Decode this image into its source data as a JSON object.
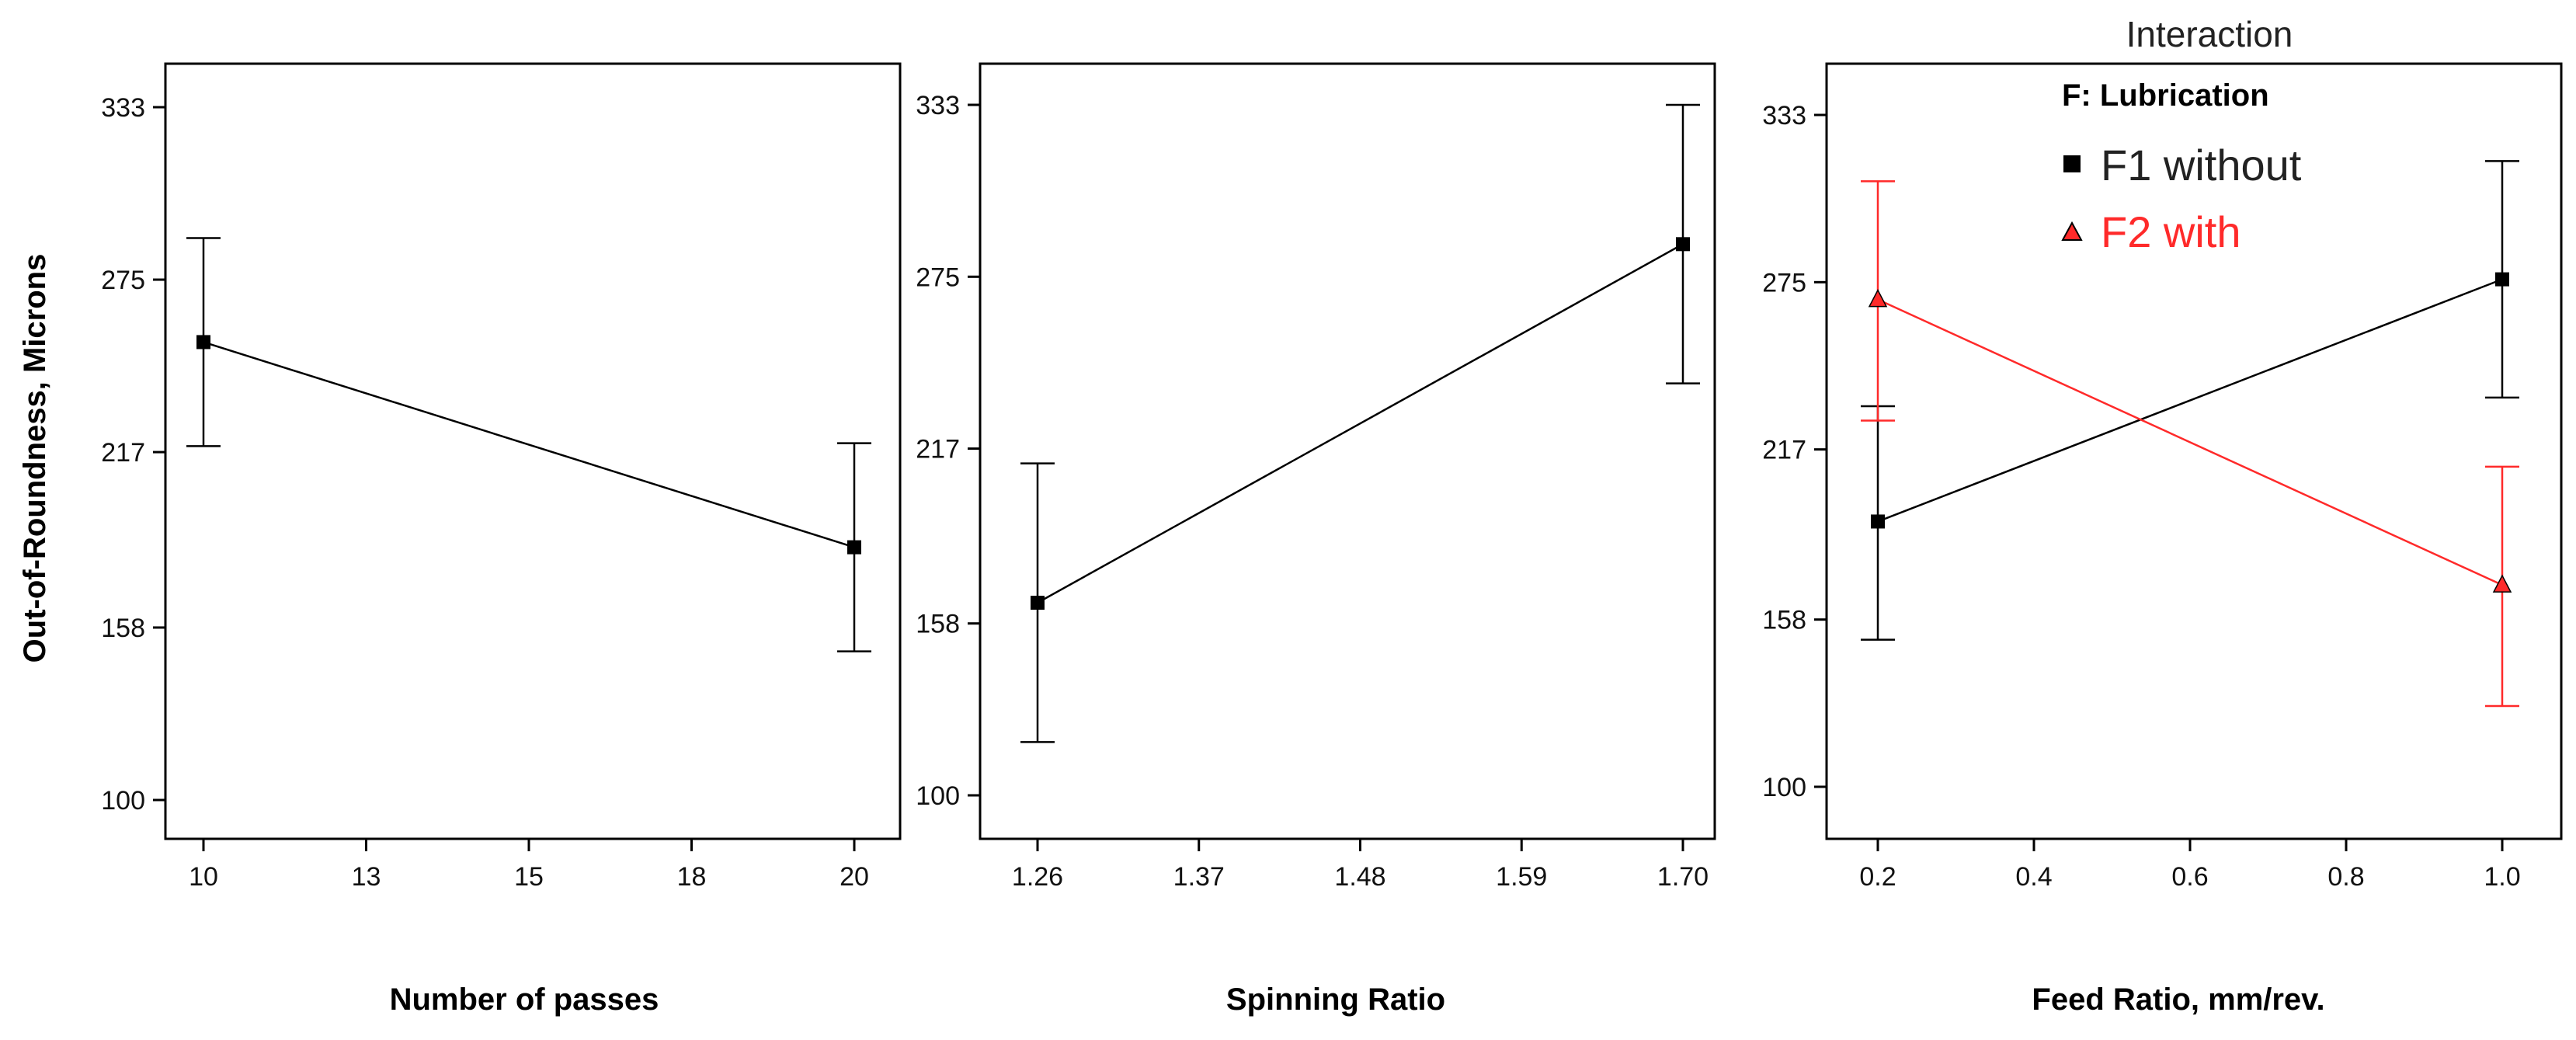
{
  "chart_data": [
    {
      "type": "line",
      "xlabel": "Number of passes",
      "ylabel": "Out-of-Roundness, Microns",
      "x_ticks": [
        "10",
        "13",
        "15",
        "18",
        "20"
      ],
      "xlim": [
        10,
        20
      ],
      "y_ticks": [
        "100",
        "158",
        "217",
        "275",
        "333"
      ],
      "ylim": [
        100,
        333
      ],
      "series": [
        {
          "color": "#000000",
          "marker": "square",
          "points": [
            {
              "x": 10,
              "y": 254,
              "lo": 219,
              "hi": 289
            },
            {
              "x": 20,
              "y": 185,
              "lo": 150,
              "hi": 220
            }
          ]
        }
      ]
    },
    {
      "type": "line",
      "xlabel": "Spinning Ratio",
      "y_ticks": [
        "100",
        "158",
        "217",
        "275",
        "333"
      ],
      "ylim": [
        100,
        333
      ],
      "x_ticks": [
        "1.26",
        "1.37",
        "1.48",
        "1.59",
        "1.70"
      ],
      "xlim": [
        1.26,
        1.7
      ],
      "series": [
        {
          "color": "#000000",
          "marker": "square",
          "points": [
            {
              "x": 1.26,
              "y": 165,
              "lo": 118,
              "hi": 212
            },
            {
              "x": 1.7,
              "y": 286,
              "lo": 239,
              "hi": 333
            }
          ]
        }
      ]
    },
    {
      "type": "line",
      "title": "Interaction",
      "xlabel": "Feed Ratio, mm/rev.",
      "y_ticks": [
        "100",
        "158",
        "217",
        "275",
        "333"
      ],
      "ylim": [
        100,
        333
      ],
      "x_ticks": [
        "0.2",
        "0.4",
        "0.6",
        "0.8",
        "1.0"
      ],
      "xlim": [
        0.2,
        1.0
      ],
      "legend": {
        "title": "F: Lubrication",
        "placement": "top-right"
      },
      "series": [
        {
          "name": "F1 without",
          "color": "#000000",
          "marker": "square",
          "points": [
            {
              "x": 0.2,
              "y": 192,
              "lo": 151,
              "hi": 232
            },
            {
              "x": 1.0,
              "y": 276,
              "lo": 235,
              "hi": 317
            }
          ]
        },
        {
          "name": "F2 with",
          "color": "#ff2a2a",
          "marker": "triangle",
          "points": [
            {
              "x": 0.2,
              "y": 269,
              "lo": 227,
              "hi": 310
            },
            {
              "x": 1.0,
              "y": 170,
              "lo": 128,
              "hi": 211
            }
          ]
        }
      ]
    }
  ]
}
